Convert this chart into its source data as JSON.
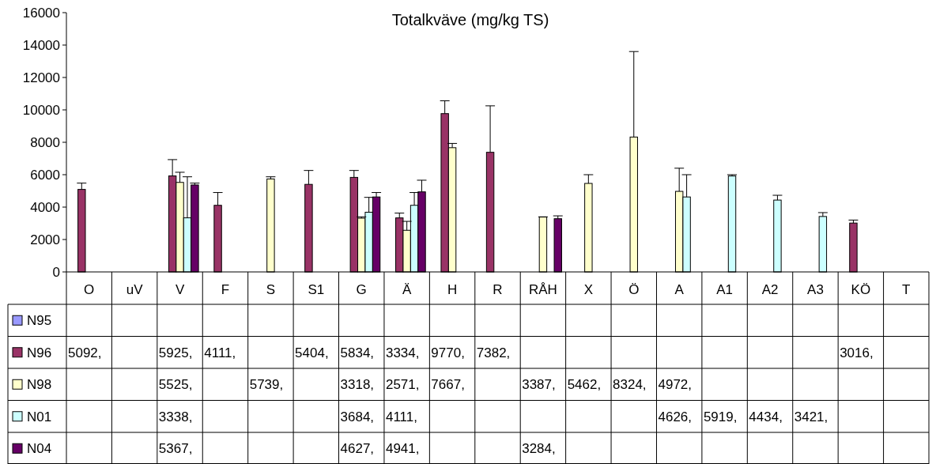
{
  "chart_data": {
    "type": "bar",
    "title": "Totalkväve (mg/kg TS)",
    "categories": [
      "O",
      "uV",
      "V",
      "F",
      "S",
      "S1",
      "G",
      "Ä",
      "H",
      "R",
      "RÅH",
      "X",
      "Ö",
      "A",
      "A1",
      "A2",
      "A3",
      "KÖ",
      "T"
    ],
    "ylim": [
      0,
      16000
    ],
    "yticks": [
      0,
      2000,
      4000,
      6000,
      8000,
      10000,
      12000,
      14000,
      16000
    ],
    "grid": false,
    "legend": "bottom",
    "series": [
      {
        "name": "N95",
        "color": "#9999ff",
        "values": [
          null,
          null,
          null,
          null,
          null,
          null,
          null,
          null,
          null,
          null,
          null,
          null,
          null,
          null,
          null,
          null,
          null,
          null,
          null
        ],
        "value_labels": [
          null,
          null,
          null,
          null,
          null,
          null,
          null,
          null,
          null,
          null,
          null,
          null,
          null,
          null,
          null,
          null,
          null,
          null,
          null
        ]
      },
      {
        "name": "N96",
        "color": "#993366",
        "values": [
          5092,
          null,
          5925,
          4111,
          null,
          5404,
          5834,
          3334,
          9770,
          7382,
          null,
          null,
          null,
          null,
          null,
          null,
          null,
          3016,
          null
        ],
        "value_labels": [
          "5092,",
          null,
          "5925,",
          "4111,",
          null,
          "5404,",
          "5834,",
          "3334,",
          "9770,",
          "7382,",
          null,
          null,
          null,
          null,
          null,
          null,
          null,
          "3016,",
          null
        ],
        "errors": [
          [
            5092,
            5480
          ],
          null,
          [
            5925,
            6930
          ],
          [
            4111,
            4900
          ],
          null,
          [
            5404,
            6260
          ],
          [
            5834,
            6260
          ],
          [
            3334,
            3630
          ],
          [
            9770,
            10560
          ],
          [
            7382,
            10250
          ],
          null,
          null,
          null,
          null,
          null,
          null,
          null,
          [
            3016,
            3200
          ],
          null
        ]
      },
      {
        "name": "N98",
        "color": "#ffffcc",
        "values": [
          null,
          null,
          5525,
          null,
          5739,
          null,
          3318,
          2571,
          7667,
          null,
          3387,
          5462,
          8324,
          4972,
          null,
          null,
          null,
          null,
          null
        ],
        "value_labels": [
          null,
          null,
          "5525,",
          null,
          "5739,",
          null,
          "3318,",
          "2571,",
          "7667,",
          null,
          "3387,",
          "5462,",
          "8324,",
          "4972,",
          null,
          null,
          null,
          null,
          null
        ],
        "errors": [
          null,
          null,
          [
            5525,
            6150
          ],
          null,
          [
            5739,
            5870
          ],
          null,
          [
            3318,
            3400
          ],
          [
            2571,
            3120
          ],
          [
            7667,
            7930
          ],
          null,
          [
            3387,
            3400
          ],
          [
            5462,
            6000
          ],
          [
            8324,
            13600
          ],
          [
            4972,
            6400
          ],
          null,
          null,
          null,
          null,
          null
        ]
      },
      {
        "name": "N01",
        "color": "#ccffff",
        "values": [
          null,
          null,
          3338,
          null,
          null,
          null,
          3684,
          4111,
          null,
          null,
          null,
          null,
          null,
          4626,
          5919,
          4434,
          3421,
          null,
          null
        ],
        "value_labels": [
          null,
          null,
          "3338,",
          null,
          null,
          null,
          "3684,",
          "4111,",
          null,
          null,
          null,
          null,
          null,
          "4626,",
          "5919,",
          "4434,",
          "3421,",
          null,
          null
        ],
        "errors": [
          null,
          null,
          [
            3338,
            5870
          ],
          null,
          null,
          null,
          [
            3684,
            4600
          ],
          [
            4111,
            4900
          ],
          null,
          null,
          null,
          null,
          null,
          [
            4626,
            6000
          ],
          [
            5919,
            6000
          ],
          [
            4434,
            4730
          ],
          [
            3421,
            3660
          ],
          null,
          null
        ]
      },
      {
        "name": "N04",
        "color": "#660066",
        "values": [
          null,
          null,
          5367,
          null,
          null,
          null,
          4627,
          4941,
          null,
          null,
          3284,
          null,
          null,
          null,
          null,
          null,
          null,
          null,
          null
        ],
        "value_labels": [
          null,
          null,
          "5367,",
          null,
          null,
          null,
          "4627,",
          "4941,",
          null,
          null,
          "3284,",
          null,
          null,
          null,
          null,
          null,
          null,
          null,
          null
        ],
        "errors": [
          null,
          null,
          [
            5367,
            5480
          ],
          null,
          null,
          null,
          [
            4627,
            4900
          ],
          [
            4941,
            5660
          ],
          null,
          null,
          [
            3284,
            3460
          ],
          null,
          null,
          null,
          null,
          null,
          null,
          null,
          null
        ]
      }
    ]
  }
}
